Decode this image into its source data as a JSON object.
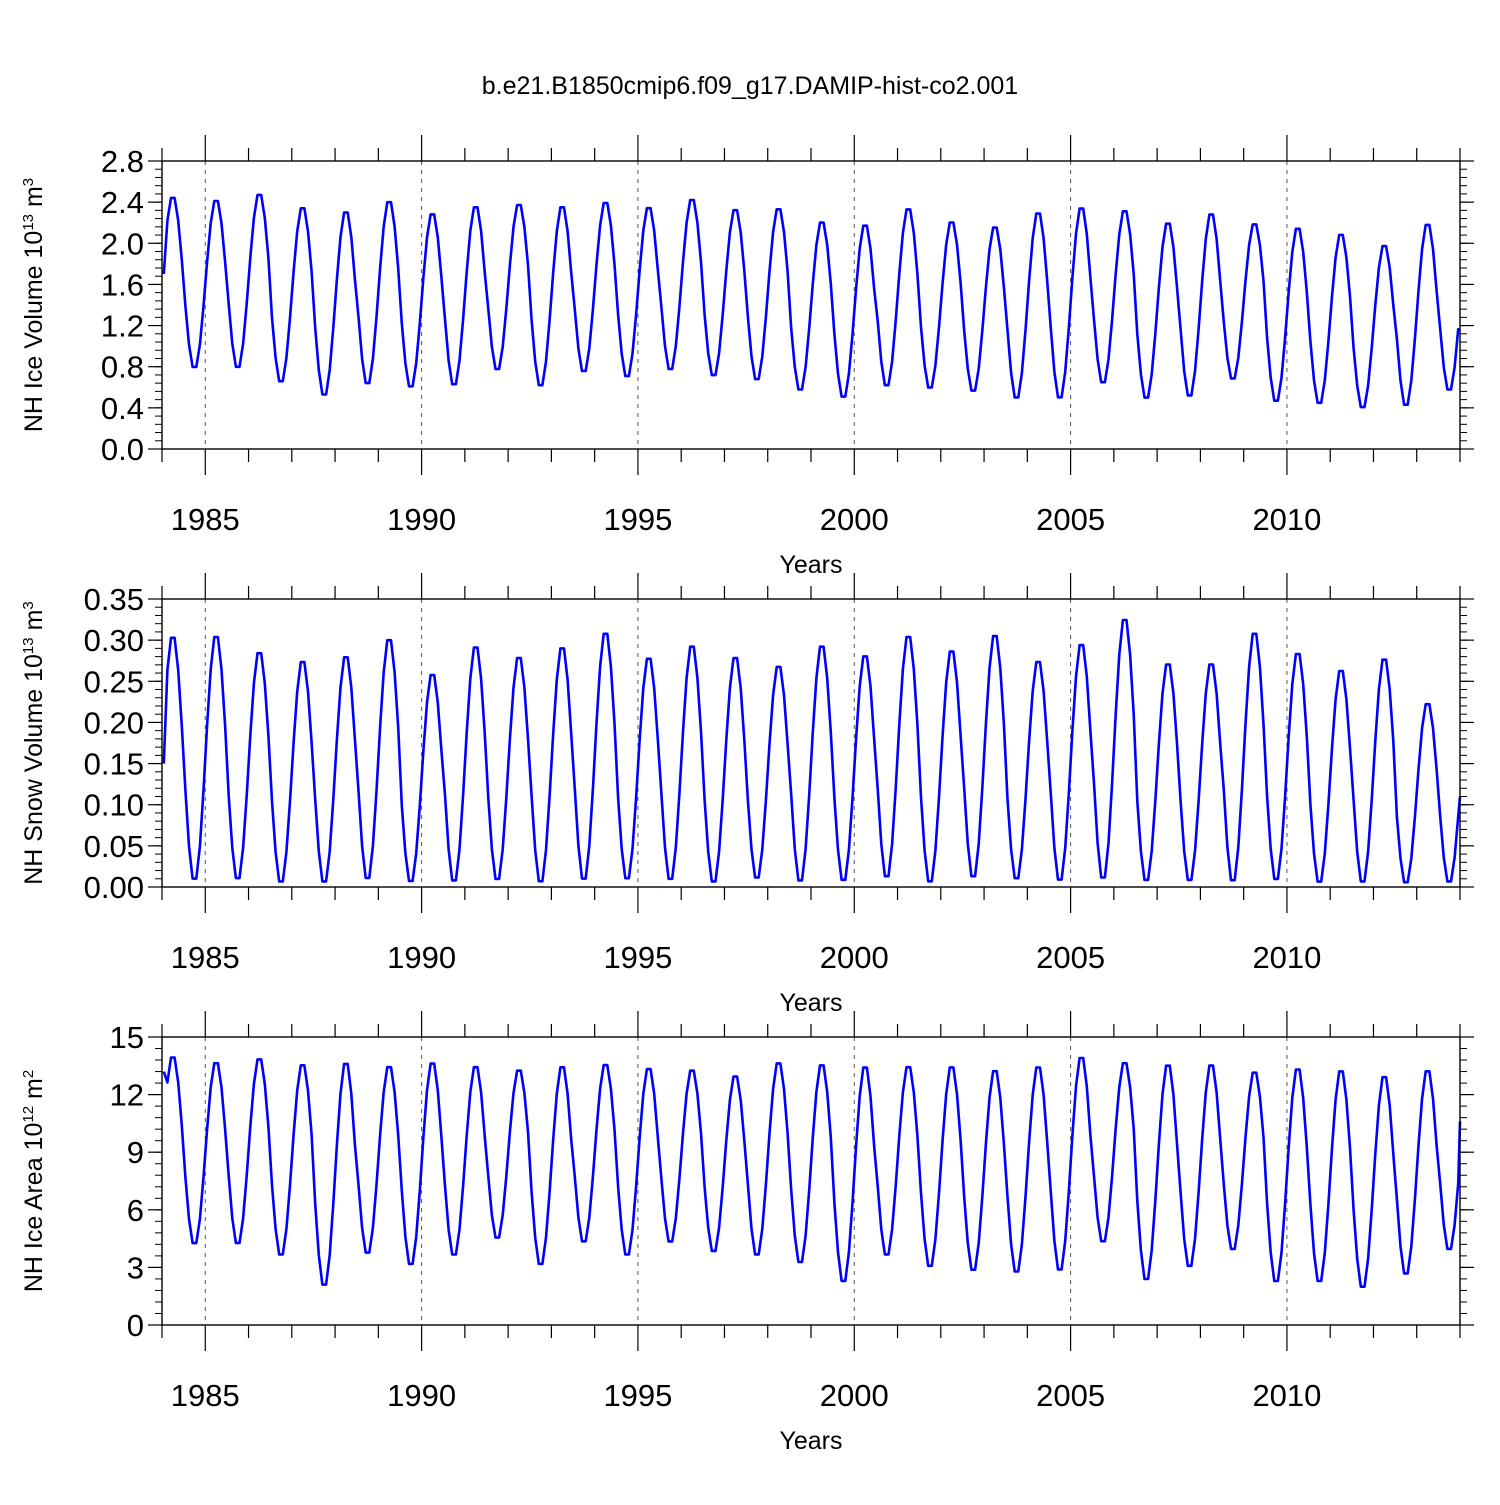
{
  "figure": {
    "title": "b.e21.B1850cmip6.f09_g17.DAMIP-hist-co2.001",
    "line_color": "#0000ff"
  },
  "chart_data": [
    {
      "type": "line",
      "title": "",
      "ylabel": "NH Ice Volume 10¹³ m³",
      "ylabel_main": "NH Ice Volume 10",
      "ylabel_exp": "13",
      "ylabel_unit": " m",
      "ylabel_unit_exp": "3",
      "xlabel": "Years",
      "xlim": [
        1984.0,
        2014.0
      ],
      "ylim": [
        0.0,
        2.8
      ],
      "xticks": [
        1985,
        1990,
        1995,
        2000,
        2005,
        2010
      ],
      "xtick_labels": [
        "1985",
        "1990",
        "1995",
        "2000",
        "2005",
        "2010"
      ],
      "yticks": [
        0.0,
        0.4,
        0.8,
        1.2,
        1.6,
        2.0,
        2.4,
        2.8
      ],
      "ytick_labels": [
        "0.0",
        "0.4",
        "0.8",
        "1.2",
        "1.6",
        "2.0",
        "2.4",
        "2.8"
      ],
      "yminor_step": 0.08,
      "start_month_value": 1.7,
      "final_value": 1.15,
      "annual_max": [
        2.47,
        2.44,
        2.5,
        2.37,
        2.33,
        2.43,
        2.31,
        2.38,
        2.4,
        2.38,
        2.42,
        2.37,
        2.45,
        2.35,
        2.36,
        2.23,
        2.2,
        2.36,
        2.23,
        2.18,
        2.32,
        2.37,
        2.34,
        2.22,
        2.31,
        2.21,
        2.17,
        2.11,
        2.0,
        2.21
      ],
      "annual_min": [
        0.77,
        0.77,
        0.63,
        0.5,
        0.61,
        0.58,
        0.6,
        0.75,
        0.59,
        0.73,
        0.68,
        0.75,
        0.69,
        0.65,
        0.55,
        0.48,
        0.59,
        0.57,
        0.54,
        0.47,
        0.47,
        0.62,
        0.47,
        0.49,
        0.66,
        0.44,
        0.42,
        0.38,
        0.4,
        0.55
      ]
    },
    {
      "type": "line",
      "title": "",
      "ylabel": "NH Snow Volume 10¹³ m³",
      "ylabel_main": "NH Snow Volume 10",
      "ylabel_exp": "13",
      "ylabel_unit": " m",
      "ylabel_unit_exp": "3",
      "xlabel": "Years",
      "xlim": [
        1984.0,
        2014.0
      ],
      "ylim": [
        0.0,
        0.35
      ],
      "xticks": [
        1985,
        1990,
        1995,
        2000,
        2005,
        2010
      ],
      "xtick_labels": [
        "1985",
        "1990",
        "1995",
        "2000",
        "2005",
        "2010"
      ],
      "yticks": [
        0.0,
        0.05,
        0.1,
        0.15,
        0.2,
        0.25,
        0.3,
        0.35
      ],
      "ytick_labels": [
        "0.00",
        "0.05",
        "0.10",
        "0.15",
        "0.20",
        "0.25",
        "0.30",
        "0.35"
      ],
      "yminor_step": 0.01,
      "start_month_value": 0.15,
      "final_value": 0.11,
      "annual_max": [
        0.308,
        0.309,
        0.289,
        0.278,
        0.284,
        0.305,
        0.262,
        0.296,
        0.283,
        0.295,
        0.313,
        0.282,
        0.297,
        0.283,
        0.272,
        0.297,
        0.285,
        0.309,
        0.291,
        0.31,
        0.278,
        0.299,
        0.33,
        0.275,
        0.275,
        0.313,
        0.288,
        0.267,
        0.281,
        0.226
      ],
      "annual_min": [
        0.005,
        0.006,
        0.002,
        0.002,
        0.006,
        0.003,
        0.003,
        0.005,
        0.002,
        0.005,
        0.006,
        0.005,
        0.002,
        0.007,
        0.003,
        0.004,
        0.008,
        0.002,
        0.008,
        0.006,
        0.004,
        0.006,
        0.004,
        0.004,
        0.003,
        0.005,
        0.002,
        0.002,
        0.002,
        0.003
      ]
    },
    {
      "type": "line",
      "title": "",
      "ylabel": "NH Ice Area 10¹² m²",
      "ylabel_main": "NH Ice Area 10",
      "ylabel_exp": "12",
      "ylabel_unit": " m",
      "ylabel_unit_exp": "2",
      "xlabel": "Years",
      "xlim": [
        1984.0,
        2014.0
      ],
      "ylim": [
        0,
        15
      ],
      "xticks": [
        1985,
        1990,
        1995,
        2000,
        2005,
        2010
      ],
      "xtick_labels": [
        "1985",
        "1990",
        "1995",
        "2000",
        "2005",
        "2010"
      ],
      "yticks": [
        0,
        3,
        6,
        9,
        12,
        15
      ],
      "ytick_labels": [
        "0",
        "3",
        "6",
        "9",
        "12",
        "15"
      ],
      "yminor_step": 0.6,
      "start_month_value": 13.2,
      "final_value": 10.6,
      "annual_max": [
        14.1,
        13.8,
        14.0,
        13.7,
        13.8,
        13.6,
        13.8,
        13.6,
        13.4,
        13.6,
        13.7,
        13.5,
        13.4,
        13.1,
        13.8,
        13.7,
        13.6,
        13.6,
        13.6,
        13.4,
        13.6,
        14.1,
        13.8,
        13.7,
        13.7,
        13.3,
        13.5,
        13.4,
        13.1,
        13.4
      ],
      "annual_min": [
        4.1,
        4.1,
        3.5,
        1.9,
        3.6,
        3.0,
        3.5,
        4.4,
        3.0,
        4.2,
        3.5,
        4.2,
        3.7,
        3.5,
        3.1,
        2.1,
        3.5,
        2.9,
        2.7,
        2.6,
        2.7,
        4.2,
        2.2,
        2.9,
        3.8,
        2.1,
        2.1,
        1.8,
        2.5,
        3.8
      ]
    }
  ]
}
